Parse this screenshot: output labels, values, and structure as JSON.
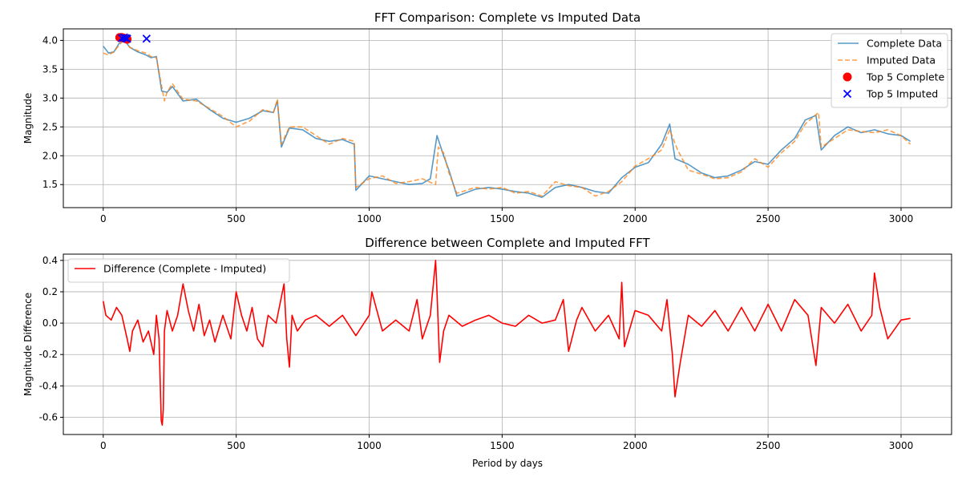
{
  "chart_data": [
    {
      "type": "line",
      "title": "FFT Comparison: Complete vs Imputed Data",
      "xlabel": "",
      "ylabel": "Magnitude",
      "xlim": [
        -150,
        3190
      ],
      "ylim": [
        1.1,
        4.2
      ],
      "xticks": [
        0,
        500,
        1000,
        1500,
        2000,
        2500,
        3000
      ],
      "yticks": [
        1.5,
        2.0,
        2.5,
        3.0,
        3.5,
        4.0
      ],
      "grid": true,
      "legend": "top-right",
      "series": [
        {
          "name": "Complete Data",
          "color": "#1f77b4",
          "x": [
            0,
            20,
            40,
            60,
            80,
            100,
            130,
            160,
            180,
            200,
            220,
            240,
            260,
            300,
            350,
            400,
            450,
            500,
            550,
            600,
            640,
            655,
            670,
            700,
            750,
            800,
            850,
            900,
            944,
            950,
            1000,
            1050,
            1100,
            1150,
            1200,
            1230,
            1255,
            1280,
            1300,
            1330,
            1400,
            1450,
            1500,
            1550,
            1600,
            1650,
            1700,
            1750,
            1800,
            1850,
            1900,
            1950,
            2000,
            2050,
            2100,
            2130,
            2150,
            2200,
            2250,
            2300,
            2350,
            2400,
            2450,
            2500,
            2550,
            2600,
            2640,
            2680,
            2700,
            2750,
            2800,
            2850,
            2900,
            2950,
            3000,
            3035
          ],
          "y": [
            3.9,
            3.78,
            3.8,
            3.95,
            4.0,
            3.88,
            3.8,
            3.75,
            3.7,
            3.72,
            3.12,
            3.1,
            3.2,
            2.95,
            2.98,
            2.8,
            2.65,
            2.58,
            2.65,
            2.78,
            2.75,
            2.95,
            2.15,
            2.48,
            2.45,
            2.3,
            2.25,
            2.28,
            2.2,
            1.4,
            1.65,
            1.6,
            1.55,
            1.5,
            1.52,
            1.6,
            2.35,
            2.0,
            1.75,
            1.3,
            1.42,
            1.45,
            1.42,
            1.38,
            1.35,
            1.28,
            1.45,
            1.5,
            1.45,
            1.38,
            1.35,
            1.62,
            1.8,
            1.88,
            2.2,
            2.55,
            1.95,
            1.85,
            1.7,
            1.62,
            1.65,
            1.75,
            1.9,
            1.85,
            2.1,
            2.3,
            2.62,
            2.7,
            2.1,
            2.35,
            2.5,
            2.4,
            2.45,
            2.38,
            2.35,
            2.25
          ]
        },
        {
          "name": "Imputed Data",
          "color": "#ff7f0e",
          "x": [
            0,
            20,
            40,
            60,
            80,
            100,
            130,
            160,
            180,
            200,
            230,
            240,
            260,
            300,
            350,
            400,
            450,
            500,
            550,
            600,
            640,
            655,
            670,
            700,
            750,
            800,
            850,
            900,
            944,
            950,
            1000,
            1050,
            1100,
            1150,
            1200,
            1250,
            1260,
            1280,
            1300,
            1330,
            1400,
            1450,
            1500,
            1550,
            1600,
            1650,
            1700,
            1750,
            1800,
            1850,
            1900,
            1950,
            2000,
            2050,
            2100,
            2130,
            2160,
            2200,
            2250,
            2300,
            2350,
            2400,
            2450,
            2500,
            2550,
            2600,
            2640,
            2690,
            2700,
            2750,
            2800,
            2850,
            2900,
            2950,
            3000,
            3035
          ],
          "y": [
            3.78,
            3.75,
            3.8,
            3.92,
            4.02,
            3.88,
            3.82,
            3.78,
            3.72,
            3.7,
            2.95,
            3.1,
            3.25,
            2.98,
            2.95,
            2.82,
            2.68,
            2.5,
            2.6,
            2.8,
            2.75,
            2.98,
            2.2,
            2.5,
            2.5,
            2.35,
            2.2,
            2.3,
            2.25,
            1.45,
            1.6,
            1.65,
            1.52,
            1.55,
            1.6,
            1.5,
            2.15,
            2.05,
            1.7,
            1.35,
            1.45,
            1.42,
            1.45,
            1.35,
            1.38,
            1.3,
            1.55,
            1.48,
            1.45,
            1.3,
            1.38,
            1.55,
            1.82,
            1.95,
            2.1,
            2.45,
            2.1,
            1.75,
            1.68,
            1.6,
            1.62,
            1.72,
            1.95,
            1.8,
            2.05,
            2.25,
            2.55,
            2.75,
            2.15,
            2.3,
            2.45,
            2.42,
            2.4,
            2.45,
            2.35,
            2.2
          ]
        },
        {
          "name": "Top 5 Complete",
          "type": "scatter",
          "marker": "circle",
          "color": "#ff0000",
          "x": [
            62,
            70,
            78,
            85,
            90
          ],
          "y": [
            4.05,
            4.05,
            4.04,
            4.03,
            4.02
          ]
        },
        {
          "name": "Top 5 Imputed",
          "type": "scatter",
          "marker": "x",
          "color": "#0000ff",
          "x": [
            70,
            78,
            85,
            90,
            163
          ],
          "y": [
            4.04,
            4.05,
            4.04,
            4.03,
            4.03
          ]
        }
      ]
    },
    {
      "type": "line",
      "title": "Difference between Complete and Imputed FFT",
      "xlabel": "Period by days",
      "ylabel": "Magnitude Difference",
      "xlim": [
        -150,
        3190
      ],
      "ylim": [
        -0.71,
        0.44
      ],
      "xticks": [
        0,
        500,
        1000,
        1500,
        2000,
        2500,
        3000
      ],
      "yticks": [
        -0.6,
        -0.4,
        -0.2,
        0.0,
        0.2,
        0.4
      ],
      "grid": true,
      "legend": "top-left",
      "series": [
        {
          "name": "Difference (Complete - Imputed)",
          "color": "#ff0000",
          "x": [
            0,
            10,
            30,
            50,
            70,
            90,
            100,
            110,
            130,
            150,
            170,
            190,
            200,
            210,
            218,
            222,
            226,
            230,
            240,
            260,
            280,
            300,
            320,
            340,
            360,
            380,
            400,
            420,
            450,
            480,
            500,
            520,
            540,
            560,
            580,
            600,
            620,
            650,
            680,
            690,
            700,
            710,
            730,
            760,
            800,
            850,
            900,
            950,
            1000,
            1010,
            1050,
            1100,
            1150,
            1180,
            1200,
            1230,
            1250,
            1255,
            1265,
            1280,
            1300,
            1350,
            1400,
            1450,
            1500,
            1550,
            1600,
            1650,
            1700,
            1730,
            1750,
            1780,
            1800,
            1850,
            1900,
            1940,
            1950,
            1960,
            2000,
            2050,
            2100,
            2120,
            2140,
            2150,
            2170,
            2200,
            2250,
            2300,
            2350,
            2400,
            2450,
            2500,
            2550,
            2600,
            2650,
            2680,
            2700,
            2750,
            2800,
            2850,
            2890,
            2900,
            2920,
            2950,
            3000,
            3035
          ],
          "y": [
            0.14,
            0.05,
            0.02,
            0.1,
            0.05,
            -0.1,
            -0.18,
            -0.05,
            0.02,
            -0.12,
            -0.05,
            -0.2,
            0.05,
            -0.1,
            -0.62,
            -0.65,
            -0.55,
            -0.05,
            0.08,
            -0.05,
            0.05,
            0.25,
            0.08,
            -0.05,
            0.12,
            -0.08,
            0.02,
            -0.12,
            0.05,
            -0.1,
            0.2,
            0.05,
            -0.05,
            0.1,
            -0.1,
            -0.15,
            0.05,
            0.0,
            0.25,
            -0.1,
            -0.28,
            0.05,
            -0.05,
            0.02,
            0.05,
            -0.02,
            0.05,
            -0.08,
            0.05,
            0.2,
            -0.05,
            0.02,
            -0.05,
            0.15,
            -0.1,
            0.05,
            0.4,
            0.2,
            -0.25,
            -0.05,
            0.05,
            -0.02,
            0.02,
            0.05,
            0.0,
            -0.02,
            0.05,
            0.0,
            0.02,
            0.15,
            -0.18,
            0.02,
            0.1,
            -0.05,
            0.05,
            -0.1,
            0.26,
            -0.15,
            0.08,
            0.05,
            -0.05,
            0.15,
            -0.2,
            -0.47,
            -0.25,
            0.05,
            -0.02,
            0.08,
            -0.05,
            0.1,
            -0.05,
            0.12,
            -0.05,
            0.15,
            0.05,
            -0.27,
            0.1,
            0.0,
            0.12,
            -0.05,
            0.05,
            0.32,
            0.1,
            -0.1,
            0.02,
            0.03
          ]
        }
      ]
    }
  ]
}
